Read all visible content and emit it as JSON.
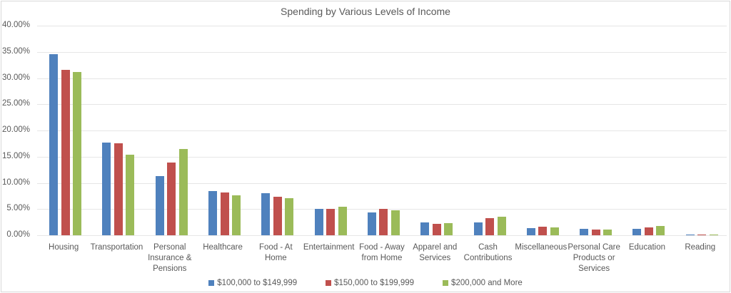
{
  "chart_data": {
    "type": "bar",
    "title": "Spending by Various Levels of Income",
    "xlabel": "",
    "ylabel": "",
    "ylim": [
      0,
      0.4
    ],
    "yticks": [
      "0.00%",
      "5.00%",
      "10.00%",
      "15.00%",
      "20.00%",
      "25.00%",
      "30.00%",
      "35.00%",
      "40.00%"
    ],
    "grid": true,
    "legend_position": "bottom",
    "categories": [
      "Housing",
      "Transportation",
      "Personal Insurance & Pensions",
      "Healthcare",
      "Food - At Home",
      "Entertainment",
      "Food - Away from Home",
      "Apparel and Services",
      "Cash Contributions",
      "Miscellaneous",
      "Personal Care Products or Services",
      "Education",
      "Reading"
    ],
    "series": [
      {
        "name": "$100,000 to $149,999",
        "color": "#4f81bd",
        "values": [
          0.346,
          0.177,
          0.113,
          0.084,
          0.08,
          0.05,
          0.043,
          0.025,
          0.024,
          0.014,
          0.012,
          0.012,
          0.002
        ]
      },
      {
        "name": "$150,000 to $199,999",
        "color": "#c0504d",
        "values": [
          0.315,
          0.175,
          0.139,
          0.082,
          0.074,
          0.051,
          0.05,
          0.022,
          0.032,
          0.017,
          0.011,
          0.015,
          0.001
        ]
      },
      {
        "name": "$200,000 and More",
        "color": "#9bbb59",
        "values": [
          0.311,
          0.154,
          0.164,
          0.076,
          0.071,
          0.055,
          0.047,
          0.023,
          0.035,
          0.015,
          0.011,
          0.018,
          0.002
        ]
      }
    ]
  },
  "category_lines": [
    [
      "Housing"
    ],
    [
      "Transportation"
    ],
    [
      "Personal",
      "Insurance &",
      "Pensions"
    ],
    [
      "Healthcare"
    ],
    [
      "Food - At",
      "Home"
    ],
    [
      "Entertainment"
    ],
    [
      "Food - Away",
      "from Home"
    ],
    [
      "Apparel and",
      "Services"
    ],
    [
      "Cash",
      "Contributions"
    ],
    [
      "Miscellaneous"
    ],
    [
      "Personal Care",
      "Products or",
      "Services"
    ],
    [
      "Education"
    ],
    [
      "Reading"
    ]
  ]
}
